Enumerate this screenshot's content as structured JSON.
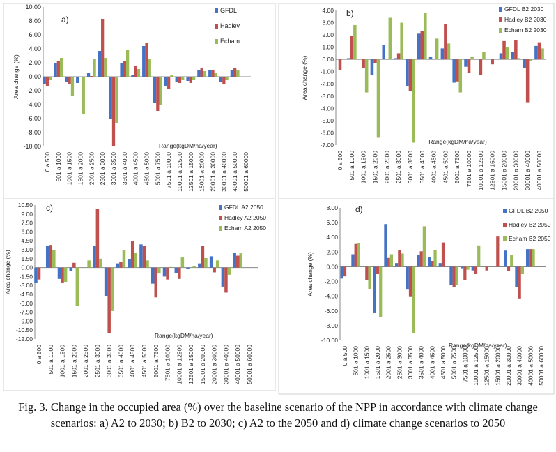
{
  "colors": {
    "gfdl": "#4472C4",
    "hadley": "#C0504D",
    "echam": "#9BBB59"
  },
  "caption": "Fig. 3. Change in the occupied area (%) over the baseline scenario of the NPP in accordance with climate change scenarios: a) A2 to 2030; b) B2 to 2030; c) A2 to the 2050 and d) climate change scenarios to 2050",
  "chart_data": [
    {
      "type": "bar",
      "panel": "a)",
      "xlabel": "Range(kgDM/ha/year)",
      "ylabel": "Area change (%)",
      "ylim": [
        -10,
        10
      ],
      "yticks": [
        "-10.00",
        "-8.00",
        "-6.00",
        "-4.00",
        "-2.00",
        "0.00",
        "2.00",
        "4.00",
        "6.00",
        "8.00",
        "10.00"
      ],
      "categories": [
        "0 a 500",
        "501 a 1000",
        "1001 a 1500",
        "1501 a 2000",
        "2001 a 2500",
        "2501 a 3000",
        "3001 a 3500",
        "3501 a 4000",
        "4001 a 4500",
        "4501 a 5000",
        "5001 a 7500",
        "7501 a 10000",
        "10001 a 12500",
        "12501 a 15000",
        "15001 a 20000",
        "20001 a 30000",
        "30001 a 40000",
        "40001 a 50000",
        "50001 a 60000"
      ],
      "series": [
        {
          "name": "GFDL",
          "values": [
            -1.1,
            2.0,
            -0.7,
            -0.9,
            0.5,
            3.7,
            -6.0,
            2.0,
            0.3,
            4.4,
            -3.8,
            -1.4,
            -0.8,
            -0.6,
            0.9,
            0.9,
            -0.8,
            1.0,
            0.0
          ]
        },
        {
          "name": "Hadley",
          "values": [
            -1.4,
            2.2,
            -1.0,
            -0.1,
            0.1,
            8.3,
            -10.0,
            2.3,
            1.5,
            4.9,
            -4.9,
            -1.8,
            -0.9,
            -0.9,
            1.3,
            0.9,
            -1.0,
            1.3,
            0.0
          ]
        },
        {
          "name": "Echam",
          "values": [
            -0.5,
            2.7,
            -2.7,
            -5.3,
            2.6,
            2.7,
            -6.7,
            3.9,
            1.1,
            2.6,
            -4.1,
            0.2,
            -0.5,
            -0.4,
            0.8,
            0.5,
            -0.5,
            1.0,
            0.0
          ]
        }
      ]
    },
    {
      "type": "bar",
      "panel": "b)",
      "xlabel": "Range(kgDM/ha/year)",
      "ylabel": "Area change (%)",
      "ylim": [
        -7,
        4
      ],
      "yticks": [
        "-7.00",
        "-6.00",
        "-5.00",
        "-4.00",
        "-3.00",
        "-2.00",
        "-1.00",
        "0.00",
        "1.00",
        "2.00",
        "3.00",
        "4.00"
      ],
      "categories": [
        "0 a 500",
        "501 a 1000",
        "1001 a 1500",
        "1501 a 2000",
        "2001 a 2500",
        "2501 a 3000",
        "3001 a 3500",
        "3501 a 4000",
        "4001 a 4500",
        "4501 a 5000",
        "5001 a 7500",
        "7501 a 10000",
        "10001 a 12500",
        "12501 a 15000",
        "15001 a 20000",
        "20001 a 30000",
        "30001 a 40000",
        "40001 a 50000"
      ],
      "series": [
        {
          "name": "GFDL B2 2030",
          "values": [
            0.0,
            0.1,
            0.0,
            -1.3,
            1.2,
            0.1,
            -2.2,
            2.1,
            0.2,
            0.9,
            -1.9,
            -0.6,
            0.0,
            0.0,
            0.5,
            0.6,
            -0.7,
            1.1
          ]
        },
        {
          "name": "Hadley B2 2030",
          "values": [
            -0.9,
            1.9,
            -0.7,
            -0.3,
            0.0,
            0.5,
            -2.6,
            2.3,
            0.0,
            2.9,
            -1.8,
            -1.1,
            -1.3,
            -0.4,
            1.5,
            1.6,
            -3.5,
            1.4
          ]
        },
        {
          "name": "Echam B2 2030",
          "values": [
            0.0,
            2.8,
            -2.7,
            -6.4,
            3.4,
            3.0,
            -6.8,
            3.8,
            1.7,
            1.3,
            -2.7,
            0.2,
            0.6,
            0.0,
            1.0,
            0.1,
            -0.1,
            0.9
          ]
        }
      ]
    },
    {
      "type": "bar",
      "panel": "c)",
      "xlabel": "Range(kgDM/ha/year)",
      "ylabel": "Area change (%)",
      "ylim": [
        -12,
        10.5
      ],
      "yticks": [
        "-12.00",
        "-10.50",
        "-9.00",
        "-7.50",
        "-6.00",
        "-4.50",
        "-3.00",
        "-1.50",
        "0.00",
        "1.50",
        "3.00",
        "4.50",
        "6.00",
        "7.50",
        "9.00",
        "10.50"
      ],
      "categories": [
        "0 a 500",
        "501 a 1000",
        "1001 a 1500",
        "1501 a 2000",
        "2001 a 2500",
        "2501 a 3000",
        "3001 a 3500",
        "3501 a 4000",
        "4001 a 4500",
        "4501 a 5000",
        "5001 a 7500",
        "7501 a 10000",
        "10001 a 12500",
        "12501 a 15000",
        "15001 a 20000",
        "20001 a 30000",
        "30001 a 40000",
        "40001 a 50000",
        "50001 a 60000"
      ],
      "series": [
        {
          "name": "GFDL A2 2050",
          "values": [
            -2.6,
            3.6,
            -1.9,
            -0.6,
            0.0,
            3.6,
            -4.8,
            0.7,
            1.4,
            3.9,
            -2.7,
            -1.5,
            -0.9,
            -0.2,
            0.7,
            1.9,
            -3.2,
            2.5,
            0.0
          ]
        },
        {
          "name": "Hadley A2 2050",
          "values": [
            -2.0,
            3.8,
            -2.5,
            0.8,
            0.0,
            9.9,
            -11.0,
            1.0,
            4.5,
            3.6,
            -5.0,
            -2.0,
            -1.9,
            0.0,
            3.6,
            -0.8,
            -4.2,
            2.0,
            0.0
          ]
        },
        {
          "name": "Echam A2 2050",
          "values": [
            0.0,
            2.9,
            -2.4,
            -6.4,
            1.2,
            1.5,
            -7.3,
            2.9,
            2.5,
            1.2,
            -1.0,
            0.1,
            1.7,
            0.3,
            1.6,
            1.2,
            -1.2,
            2.4,
            0.0
          ]
        }
      ]
    },
    {
      "type": "bar",
      "panel": "d)",
      "xlabel": "Range(kgDM/ha/year)",
      "ylabel": "Area change (%)",
      "ylim": [
        -10,
        8
      ],
      "yticks": [
        "-10.00",
        "-8.00",
        "-6.00",
        "-4.00",
        "-2.00",
        "0.00",
        "2.00",
        "4.00",
        "6.00",
        "8.00"
      ],
      "categories": [
        "0 a 500",
        "501 a 1000",
        "1001 a 1500",
        "1501 a 2000",
        "2001 a 2500",
        "2501 a 3000",
        "3001 a 3500",
        "3501 a 4000",
        "4001 a 4500",
        "4501 a 5000",
        "5001 a 7500",
        "7501 a 10000",
        "10001 a 12500",
        "12501 a 15000",
        "15001 a 20000",
        "20001 a 30000",
        "30001 a 40000",
        "40001 a 50000",
        "50001 a 60000"
      ],
      "series": [
        {
          "name": "GFDL B2 2050",
          "values": [
            -1.6,
            1.7,
            0.0,
            -6.3,
            5.8,
            0.5,
            -3.1,
            1.6,
            1.3,
            0.5,
            -2.5,
            -0.2,
            -0.5,
            0.0,
            0.0,
            2.2,
            -2.8,
            2.4,
            0.0
          ]
        },
        {
          "name": "Hadley B2 2050",
          "values": [
            -1.3,
            3.1,
            -1.8,
            -1.0,
            1.2,
            2.3,
            -4.1,
            2.1,
            0.8,
            3.3,
            -2.8,
            -1.8,
            -1.0,
            -0.5,
            4.1,
            -0.6,
            -4.3,
            2.4,
            0.0
          ]
        },
        {
          "name": "Echam B2 2050",
          "values": [
            0.0,
            3.2,
            -3.0,
            -6.8,
            1.7,
            1.8,
            -9.0,
            5.5,
            2.3,
            0.0,
            -2.5,
            -0.4,
            2.9,
            0.0,
            0.0,
            1.6,
            -1.0,
            2.4,
            0.0
          ]
        }
      ]
    }
  ]
}
